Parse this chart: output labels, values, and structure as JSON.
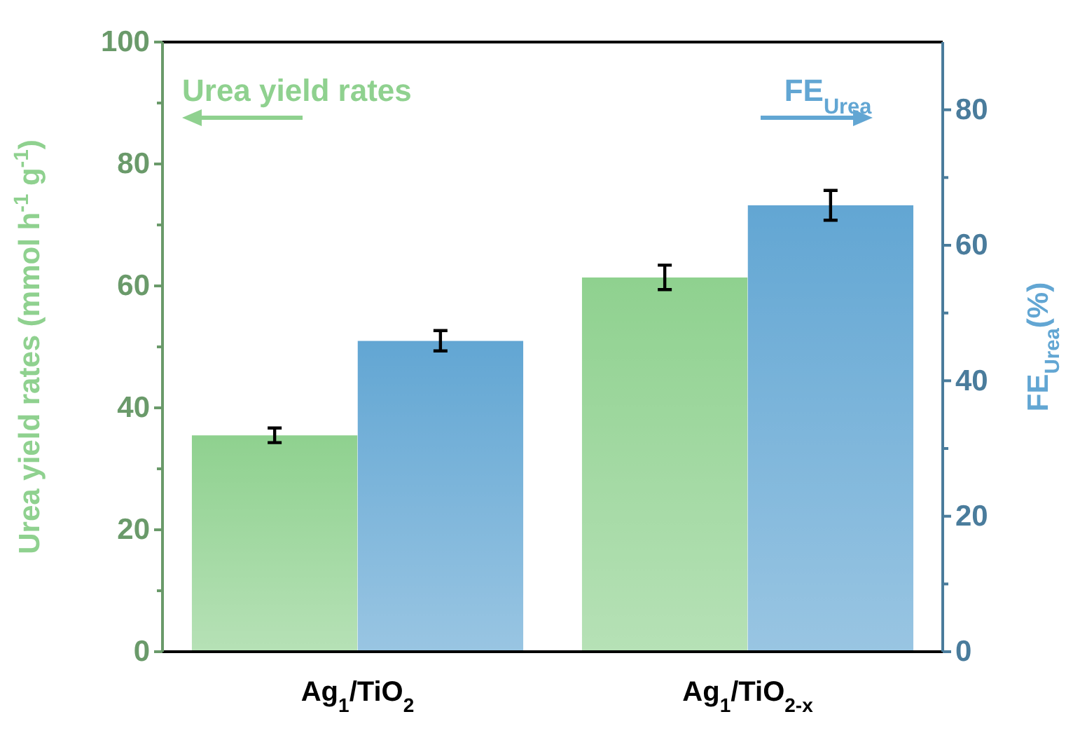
{
  "chart_data": {
    "type": "bar",
    "categories": [
      "Ag$_{1}$/TiO$_{2}$",
      "Ag$_{1}$/TiO$_{2-x}$"
    ],
    "ylabel": "Urea yield rates (mmol h$^{-1}$ g$^{-1}$)",
    "y2label": "FE$_{Urea}$(%)",
    "ylim": [
      0,
      100
    ],
    "yticks": [
      0,
      {
        "value": 10,
        "label": null
      },
      20,
      {
        "value": 30,
        "label": null
      },
      40,
      {
        "value": 50,
        "label": null
      },
      60,
      {
        "value": 70,
        "label": null
      },
      80,
      {
        "value": 90,
        "label": null
      },
      100
    ],
    "y2lim": [
      0,
      90
    ],
    "y2ticks": [
      0,
      {
        "value": 10,
        "label": null
      },
      20,
      {
        "value": 30,
        "label": null
      },
      40,
      {
        "value": 50,
        "label": null
      },
      60,
      {
        "value": 70,
        "label": null
      },
      80
    ],
    "legend": "top",
    "series": [
      {
        "name": "Urea yield rates",
        "color": "#8fd18f",
        "values": [
          35.5,
          61.4
        ],
        "errors": [
          1.2,
          2.0
        ]
      },
      {
        "name": "FE$_{Urea}$",
        "color": "#62a6d3",
        "values": [
          45.9,
          65.9
        ],
        "errors": [
          1.5,
          2.2
        ],
        "axis": "y2"
      }
    ]
  }
}
